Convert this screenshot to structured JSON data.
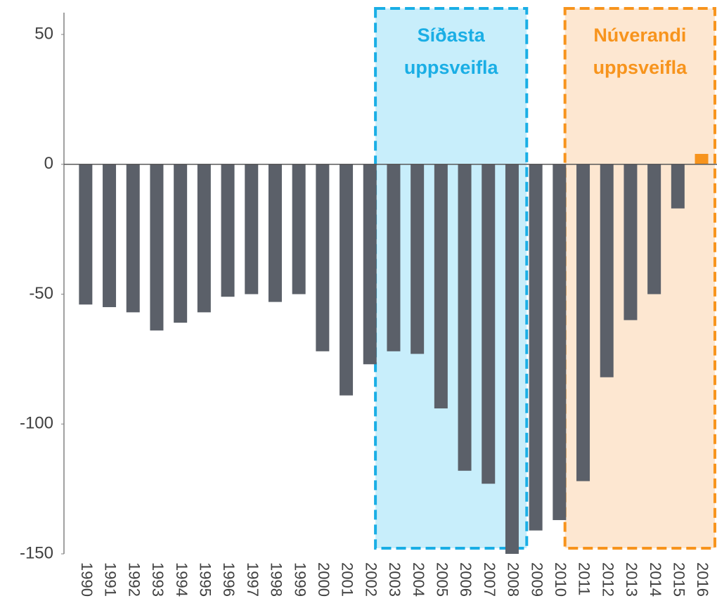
{
  "chart_data": {
    "type": "bar",
    "categories": [
      "1990",
      "1991",
      "1992",
      "1993",
      "1994",
      "1995",
      "1996",
      "1997",
      "1998",
      "1999",
      "2000",
      "2001",
      "2002",
      "2003",
      "2004",
      "2005",
      "2006",
      "2007",
      "2008",
      "2009",
      "2010",
      "2011",
      "2012",
      "2013",
      "2014",
      "2015",
      "2016"
    ],
    "values": [
      -54,
      -55,
      -57,
      -64,
      -61,
      -57,
      -51,
      -50,
      -53,
      -50,
      -72,
      -89,
      -77,
      -72,
      -73,
      -94,
      -118,
      -123,
      -150,
      -141,
      -137,
      -122,
      -82,
      -60,
      -50,
      -17,
      4
    ],
    "colors": [
      "#5b6069",
      "#5b6069",
      "#5b6069",
      "#5b6069",
      "#5b6069",
      "#5b6069",
      "#5b6069",
      "#5b6069",
      "#5b6069",
      "#5b6069",
      "#5b6069",
      "#5b6069",
      "#5b6069",
      "#5b6069",
      "#5b6069",
      "#5b6069",
      "#5b6069",
      "#5b6069",
      "#5b6069",
      "#5b6069",
      "#5b6069",
      "#5b6069",
      "#5b6069",
      "#5b6069",
      "#5b6069",
      "#5b6069",
      "#f7941d"
    ],
    "ylim": [
      -150,
      50
    ],
    "yticks": [
      50,
      0,
      -50,
      -100,
      -150
    ],
    "highlights": [
      {
        "label": [
          "Síðasta",
          "uppsveifla"
        ],
        "from": "2003",
        "to": "2008",
        "color": "#1aaee5",
        "fill": "#c8eefb"
      },
      {
        "label": [
          "Núverandi",
          "uppsveifla"
        ],
        "from": "2011",
        "to": "2016",
        "color": "#f7941d",
        "fill": "#fde7d1"
      }
    ]
  }
}
